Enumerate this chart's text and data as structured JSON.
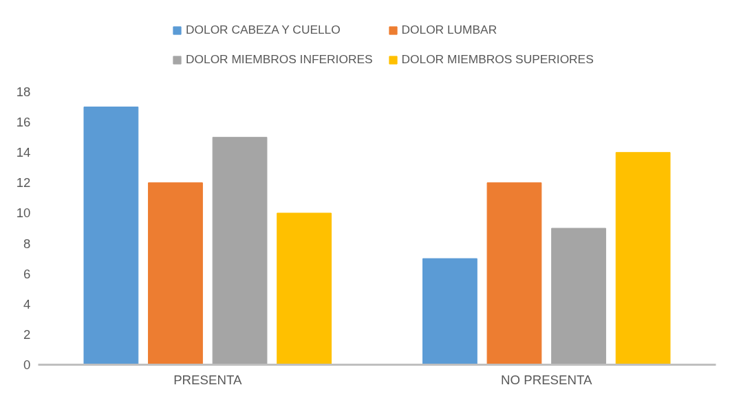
{
  "chart_data": {
    "type": "bar",
    "categories": [
      "PRESENTA",
      "NO PRESENTA"
    ],
    "series": [
      {
        "name": "DOLOR CABEZA Y CUELLO",
        "color": "#5b9bd5",
        "values": [
          17,
          7
        ]
      },
      {
        "name": "DOLOR LUMBAR",
        "color": "#ed7d31",
        "values": [
          12,
          12
        ]
      },
      {
        "name": "DOLOR MIEMBROS INFERIORES",
        "color": "#a5a5a5",
        "values": [
          15,
          9
        ]
      },
      {
        "name": "DOLOR MIEMBROS SUPERIORES",
        "color": "#ffc000",
        "values": [
          10,
          14
        ]
      }
    ],
    "ylim": [
      0,
      18
    ],
    "yticks": [
      0,
      2,
      4,
      6,
      8,
      10,
      12,
      14,
      16,
      18
    ],
    "grid": false,
    "legend": "top"
  }
}
